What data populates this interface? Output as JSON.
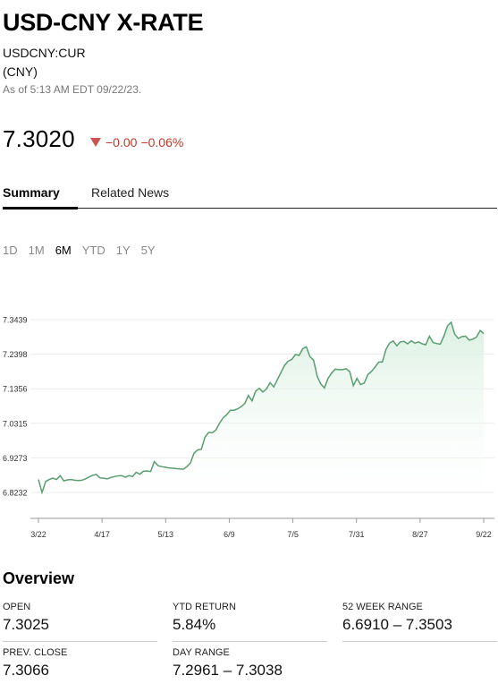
{
  "header": {
    "title": "USD-CNY X-RATE",
    "ticker": "USDCNY:CUR",
    "currency": "(CNY)",
    "as_of": "As of 5:13 AM EDT 09/22/23."
  },
  "quote": {
    "price": "7.3020",
    "change": "−0.00",
    "change_pct": "−0.06%",
    "direction_color": "#c95454"
  },
  "tabs": [
    {
      "label": "Summary",
      "active": true
    },
    {
      "label": "Related News",
      "active": false
    }
  ],
  "ranges": [
    {
      "label": "1D",
      "active": false
    },
    {
      "label": "1M",
      "active": false
    },
    {
      "label": "6M",
      "active": true
    },
    {
      "label": "YTD",
      "active": false
    },
    {
      "label": "1Y",
      "active": false
    },
    {
      "label": "5Y",
      "active": false
    }
  ],
  "chart_data": {
    "type": "area",
    "line_color": "#5a9e6f",
    "y_ticks": [
      "7.3439",
      "7.2398",
      "7.1356",
      "7.0315",
      "6.9273",
      "6.8232"
    ],
    "y_tick_values": [
      7.3439,
      7.2398,
      7.1356,
      7.0315,
      6.9273,
      6.8232
    ],
    "x_ticks": [
      "3/22",
      "4/17",
      "5/13",
      "6/9",
      "7/5",
      "7/31",
      "8/27",
      "9/22"
    ],
    "ylim": [
      6.78,
      7.38
    ],
    "values": [
      6.862,
      6.823,
      6.856,
      6.862,
      6.866,
      6.862,
      6.874,
      6.858,
      6.861,
      6.862,
      6.86,
      6.859,
      6.86,
      6.864,
      6.87,
      6.875,
      6.877,
      6.867,
      6.866,
      6.864,
      6.868,
      6.871,
      6.873,
      6.874,
      6.869,
      6.874,
      6.871,
      6.884,
      6.878,
      6.887,
      6.888,
      6.886,
      6.916,
      6.904,
      6.901,
      6.899,
      6.897,
      6.896,
      6.895,
      6.894,
      6.893,
      6.901,
      6.912,
      6.942,
      6.951,
      6.953,
      6.989,
      7.004,
      7.003,
      7.011,
      7.031,
      7.048,
      7.057,
      7.071,
      7.071,
      7.075,
      7.082,
      7.091,
      7.115,
      7.099,
      7.128,
      7.137,
      7.126,
      7.135,
      7.154,
      7.141,
      7.163,
      7.185,
      7.206,
      7.219,
      7.224,
      7.239,
      7.236,
      7.256,
      7.262,
      7.232,
      7.222,
      7.173,
      7.15,
      7.138,
      7.167,
      7.183,
      7.195,
      7.193,
      7.193,
      7.196,
      7.187,
      7.145,
      7.167,
      7.148,
      7.153,
      7.178,
      7.188,
      7.201,
      7.216,
      7.216,
      7.254,
      7.273,
      7.28,
      7.265,
      7.277,
      7.278,
      7.271,
      7.28,
      7.273,
      7.277,
      7.271,
      7.268,
      7.294,
      7.275,
      7.272,
      7.27,
      7.294,
      7.325,
      7.336,
      7.3,
      7.287,
      7.293,
      7.294,
      7.282,
      7.285,
      7.291,
      7.311,
      7.302
    ]
  },
  "overview": {
    "title": "Overview",
    "stats": [
      {
        "label": "OPEN",
        "value": "7.3025"
      },
      {
        "label": "YTD RETURN",
        "value": "5.84%"
      },
      {
        "label": "52 WEEK RANGE",
        "value": "6.6910 – 7.3503"
      },
      {
        "label": "PREV. CLOSE",
        "value": "7.3066"
      },
      {
        "label": "DAY RANGE",
        "value": "7.2961 – 7.3038"
      }
    ]
  }
}
